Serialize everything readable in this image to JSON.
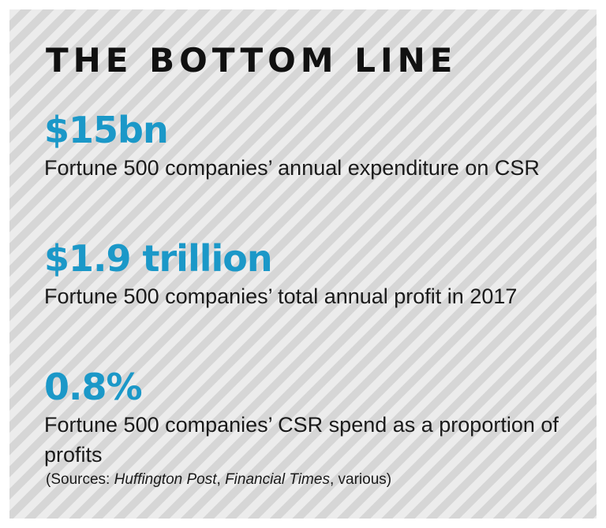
{
  "title": "THE BOTTOM LINE",
  "accent_color": "#1b98c8",
  "stats": [
    {
      "value": "$15bn",
      "description": "Fortune 500 companies’ annual expenditure on CSR"
    },
    {
      "value": "$1.9 trillion",
      "description": "Fortune 500 companies’ total annual profit in 2017"
    },
    {
      "value": "0.8%",
      "description": "Fortune 500 companies’ CSR spend as a proportion of profits"
    }
  ],
  "sources": {
    "prefix": "(Sources: ",
    "source_1": "Huffington Post",
    "separator": ", ",
    "source_2": "Financial Times",
    "suffix": ", various)"
  }
}
